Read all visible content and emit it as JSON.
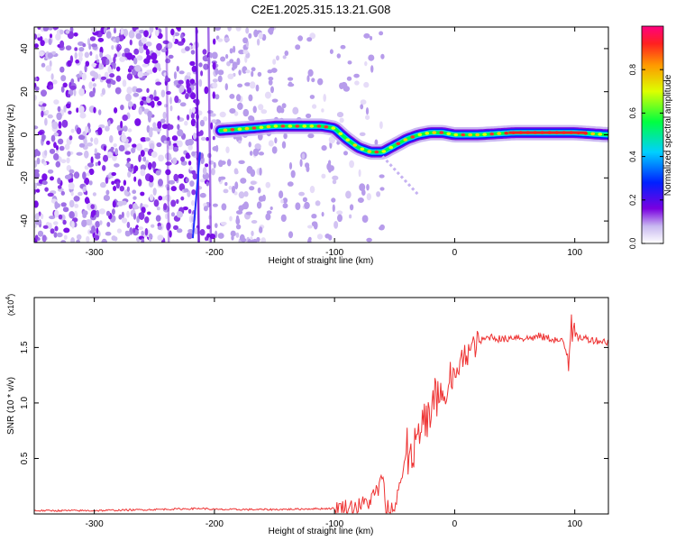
{
  "title": "C2E1.2025.315.13.21.G08",
  "chart_data": [
    {
      "type": "heatmap",
      "name": "spectrogram",
      "xlabel": "Height of straight line (km)",
      "ylabel": "Frequency (Hz)",
      "xlim": [
        -350,
        128
      ],
      "ylim": [
        -50,
        50
      ],
      "xticks": [
        -300,
        -200,
        -100,
        0,
        100
      ],
      "yticks": [
        -40,
        -20,
        0,
        20,
        40
      ],
      "noise_region_x": [
        -350,
        -150
      ],
      "signal_start_x": -195,
      "dominant_line": {
        "x": [
          -195,
          -170,
          -150,
          -130,
          -110,
          -100,
          -90,
          -80,
          -70,
          -60,
          -50,
          -40,
          -30,
          -20,
          -10,
          0,
          20,
          50,
          100,
          128
        ],
        "freq": [
          2,
          3,
          4,
          4,
          4,
          3,
          -2,
          -6,
          -8,
          -8,
          -5,
          -2,
          0,
          1,
          1,
          0,
          0,
          1,
          1,
          0
        ]
      },
      "colorbar": {
        "label": "Normalized spectral amplitude",
        "ticks": [
          0.0,
          0.2,
          0.4,
          0.6,
          0.8
        ],
        "tick_labels": [
          "0.0",
          "0.2",
          "0.4",
          "0.6",
          "0.8"
        ],
        "range": [
          0,
          1
        ]
      }
    },
    {
      "type": "line",
      "name": "snr",
      "xlabel": "Height of straight line (km)",
      "ylabel": "SNR (10 * v/v)",
      "scale_note_base": "(x10",
      "scale_note_exp": "4",
      "scale_note_end": ")",
      "xlim": [
        -350,
        128
      ],
      "ylim": [
        0,
        1.95
      ],
      "xticks": [
        -300,
        -200,
        -100,
        0,
        100
      ],
      "yticks": [
        0.5,
        1.0,
        1.5
      ],
      "ytick_labels": [
        "0.5",
        "1.0",
        "1.5"
      ],
      "line_color": "#ee3333",
      "series": [
        {
          "name": "SNR",
          "x": [
            -350,
            -300,
            -250,
            -210,
            -200,
            -150,
            -100,
            -80,
            -70,
            -65,
            -60,
            -57,
            -55,
            -50,
            -45,
            -40,
            -35,
            -30,
            -25,
            -20,
            -15,
            -10,
            -5,
            0,
            5,
            10,
            15,
            20,
            30,
            40,
            50,
            60,
            70,
            80,
            90,
            95,
            97,
            100,
            110,
            120,
            128
          ],
          "y": [
            0.03,
            0.03,
            0.04,
            0.05,
            0.04,
            0.04,
            0.05,
            0.07,
            0.12,
            0.2,
            0.3,
            0.08,
            0.05,
            0.15,
            0.3,
            0.45,
            0.55,
            0.7,
            0.8,
            0.9,
            1.0,
            1.05,
            1.1,
            1.25,
            1.35,
            1.45,
            1.5,
            1.55,
            1.6,
            1.57,
            1.6,
            1.58,
            1.6,
            1.58,
            1.55,
            1.4,
            1.8,
            1.6,
            1.58,
            1.56,
            1.55
          ]
        }
      ]
    }
  ]
}
